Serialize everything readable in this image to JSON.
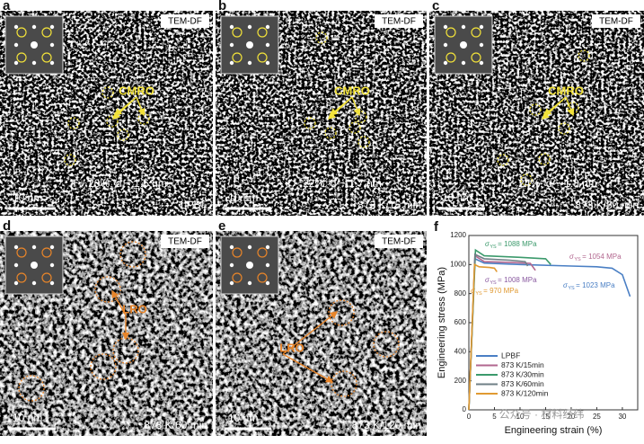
{
  "panels": [
    {
      "letter": "a",
      "tag": "TEM-DF",
      "marker": "CMRO",
      "stats": "f ~ 20%, d ~ 1.6 nm",
      "scale": "10 nm",
      "condition": "LPBF"
    },
    {
      "letter": "b",
      "tag": "TEM-DF",
      "marker": "CMRO",
      "stats": "f ~ 22%, d ~ 1.7 nm",
      "scale": "10 nm",
      "condition": "873 K/15 min"
    },
    {
      "letter": "c",
      "tag": "TEM-DF",
      "marker": "CMRO",
      "stats": "f ~ 24%, d ~ 1.8 nm",
      "scale": "10 nm",
      "condition": "873 K/30 min"
    },
    {
      "letter": "d",
      "tag": "TEM-DF",
      "marker": "LRO",
      "scale": "10 nm",
      "condition": "873 K/60 min"
    },
    {
      "letter": "e",
      "tag": "TEM-DF",
      "marker": "LRO",
      "scale": "10 nm",
      "condition": "873 K/120 min"
    }
  ],
  "chart_data": {
    "type": "line",
    "letter": "f",
    "xlabel": "Engineering strain (%)",
    "ylabel": "Engineering stress (MPa)",
    "xlim": [
      0,
      33
    ],
    "ylim": [
      0,
      1200
    ],
    "xticks": [
      0,
      5,
      10,
      15,
      20,
      25,
      30
    ],
    "yticks": [
      0,
      200,
      400,
      600,
      800,
      1000,
      1200
    ],
    "series": [
      {
        "name": "LPBF",
        "color": "#4a7fc4",
        "x": [
          0,
          1.2,
          3,
          10,
          20,
          25,
          28,
          30,
          31.5
        ],
        "values": [
          0,
          1040,
          1010,
          1000,
          990,
          985,
          975,
          930,
          780
        ]
      },
      {
        "name": "873 K/15min",
        "color": "#b2678f",
        "x": [
          0,
          1.2,
          3,
          8,
          12,
          13
        ],
        "values": [
          0,
          1060,
          1020,
          1015,
          1008,
          960
        ]
      },
      {
        "name": "873 K/30min",
        "color": "#3c9a6c",
        "x": [
          0,
          1.3,
          3,
          10,
          15,
          16
        ],
        "values": [
          0,
          1100,
          1060,
          1050,
          1040,
          1000
        ]
      },
      {
        "name": "873 K/60min",
        "color": "#6f7f86",
        "x": [
          0,
          1.2,
          3,
          8,
          11,
          11.5
        ],
        "values": [
          0,
          1070,
          1040,
          1030,
          1020,
          990
        ]
      },
      {
        "name": "873 K/120min",
        "color": "#e09a32",
        "x": [
          0,
          1.1,
          2,
          4,
          5,
          5.5
        ],
        "values": [
          0,
          1000,
          985,
          980,
          975,
          950
        ]
      }
    ],
    "annotations": [
      {
        "symbol": "σ",
        "sub": "YS",
        "text": "= 1088 MPa",
        "color": "#3c9a6c"
      },
      {
        "symbol": "σ",
        "sub": "YS",
        "text": "= 1054 MPa",
        "color": "#b2678f"
      },
      {
        "symbol": "σ",
        "sub": "YS",
        "text": "= 1008 MPa",
        "color": "#8a5aa0"
      },
      {
        "symbol": "σ",
        "sub": "YS",
        "text": "= 1023 MPa",
        "color": "#4a7fc4"
      },
      {
        "symbol": "σ",
        "sub": "YS",
        "text": "= 970 MPa",
        "color": "#e09a32"
      }
    ]
  },
  "watermark": "公众号 · 材料经纬"
}
